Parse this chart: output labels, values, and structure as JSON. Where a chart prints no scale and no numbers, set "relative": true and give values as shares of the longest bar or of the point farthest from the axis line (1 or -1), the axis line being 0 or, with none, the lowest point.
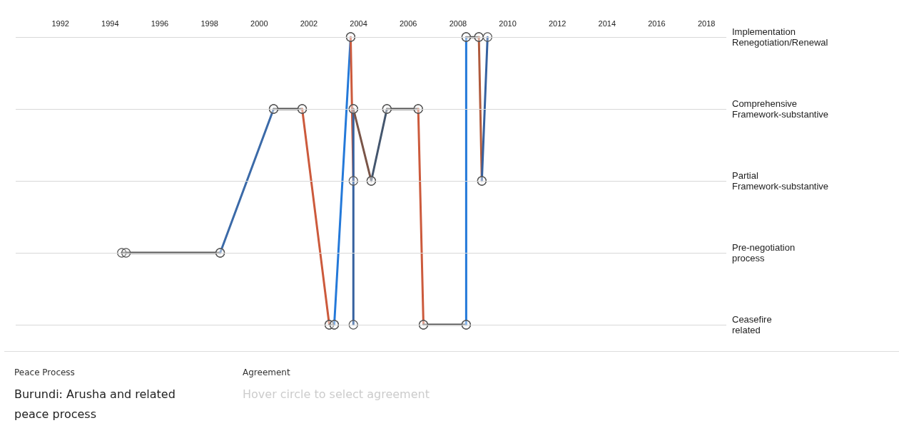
{
  "chart_data": {
    "type": "line",
    "relative": true,
    "xlim": [
      1990.2,
      2018.8
    ],
    "xticks": [
      1992,
      1994,
      1996,
      1998,
      2000,
      2002,
      2004,
      2006,
      2008,
      2010,
      2012,
      2014,
      2016,
      2018
    ],
    "marker": "circle",
    "line_style": "solid",
    "ref_lines": [
      {
        "axis": "y",
        "value": 1,
        "label": "Implementation Renegotiation/Renewal",
        "color": "#d8d8d8"
      },
      {
        "axis": "y",
        "value": 0.75,
        "label": "Comprehensive Framework-substantive",
        "color": "#d8d8d8"
      },
      {
        "axis": "y",
        "value": 0.5,
        "label": "Partial Framework-substantive",
        "color": "#d8d8d8"
      },
      {
        "axis": "y",
        "value": 0.25,
        "label": "Pre-negotiation process",
        "color": "#d8d8d8"
      },
      {
        "axis": "y",
        "value": 0,
        "label": "Ceasefire related",
        "color": "#d8d8d8"
      }
    ],
    "series": [
      {
        "x": [
          1994.47,
          1994.64,
          1998.43
        ],
        "values": [
          0.25,
          0.25,
          0.25
        ],
        "color": "#4a4a4a"
      },
      {
        "x": [
          1998.43,
          2000.58
        ],
        "values": [
          0.25,
          0.75
        ],
        "color": "#3b6aa8"
      },
      {
        "x": [
          2000.58,
          2001.73
        ],
        "values": [
          0.75,
          0.75
        ],
        "color": "#4a4a4a"
      },
      {
        "x": [
          2001.73,
          2002.82
        ],
        "values": [
          0.75,
          0
        ],
        "color": "#cc5a3c"
      },
      {
        "x": [
          2002.82,
          2003.02
        ],
        "values": [
          0,
          0
        ],
        "color": "#4a4a4a"
      },
      {
        "x": [
          2003.02,
          2003.68
        ],
        "values": [
          0,
          1
        ],
        "color": "#2479d9"
      },
      {
        "x": [
          2003.68,
          2003.79
        ],
        "values": [
          1,
          0.5
        ],
        "color": "#cc5a3c"
      },
      {
        "x": [
          2003.79,
          2003.79
        ],
        "values": [
          0.75,
          0
        ],
        "color": "#3561a0"
      },
      {
        "x": [
          2003.79,
          2004.51
        ],
        "values": [
          0.75,
          0.5
        ],
        "color": "#7a5548"
      },
      {
        "x": [
          2004.51,
          2005.14
        ],
        "values": [
          0.5,
          0.75
        ],
        "color": "#44566e"
      },
      {
        "x": [
          2005.14,
          2006.4
        ],
        "values": [
          0.75,
          0.75
        ],
        "color": "#4a4a4a"
      },
      {
        "x": [
          2006.4,
          2006.61
        ],
        "values": [
          0.75,
          0
        ],
        "color": "#cc5a3c"
      },
      {
        "x": [
          2006.61,
          2008.33
        ],
        "values": [
          0,
          0
        ],
        "color": "#4a4a4a"
      },
      {
        "x": [
          2008.33,
          2008.33
        ],
        "values": [
          0,
          1
        ],
        "color": "#2479d9"
      },
      {
        "x": [
          2008.33,
          2008.84
        ],
        "values": [
          1,
          1
        ],
        "color": "#4a4a4a"
      },
      {
        "x": [
          2008.84,
          2008.96
        ],
        "values": [
          1,
          0.5
        ],
        "color": "#b05a3c"
      },
      {
        "x": [
          2008.96,
          2009.19
        ],
        "values": [
          0.5,
          1
        ],
        "color": "#3561a0"
      }
    ],
    "annotations": [
      "Peace Process",
      "Burundi: Arusha and related peace process",
      "Agreement",
      "Hover circle to select agreement"
    ]
  }
}
